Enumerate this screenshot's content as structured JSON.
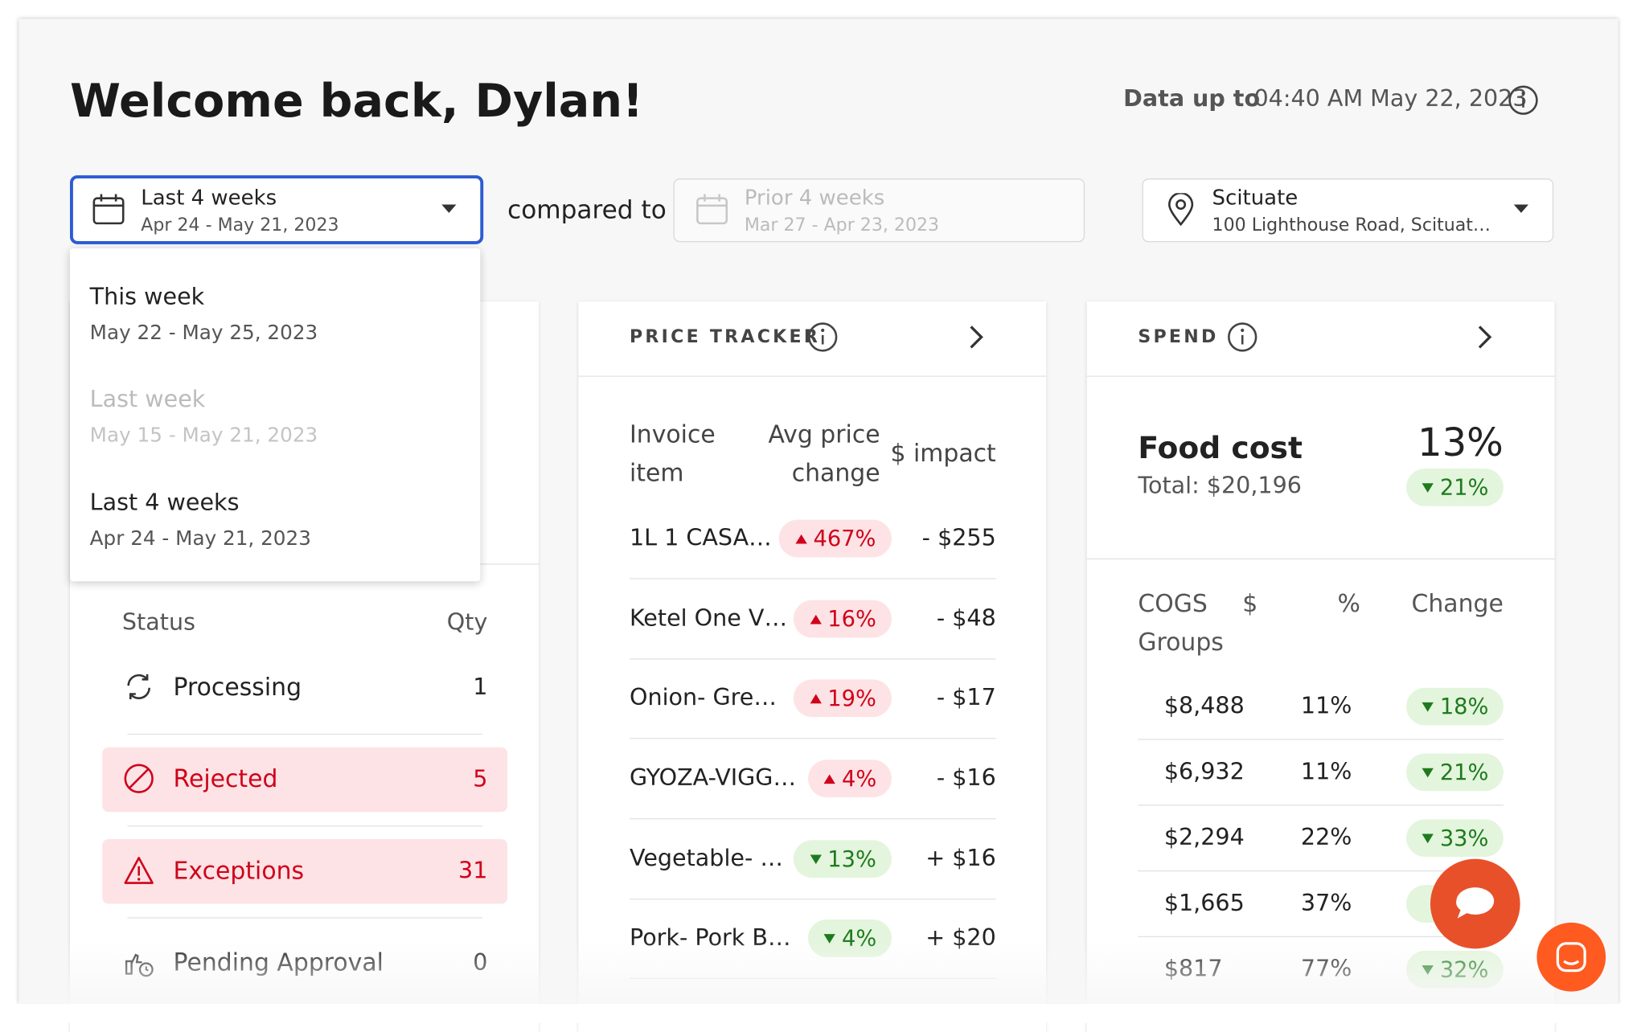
{
  "header": {
    "title": "Welcome back, Dylan!",
    "data_label": "Data up to",
    "data_time": "04:40 AM May 22, 2023"
  },
  "filters": {
    "period": {
      "label": "Last 4 weeks",
      "range": "Apr 24 - May 21, 2023"
    },
    "compared_label": "compared to",
    "compare": {
      "label": "Prior 4 weeks",
      "range": "Mar 27 - Apr 23, 2023"
    },
    "location": {
      "label": "Scituate",
      "address": "100 Lighthouse Road, Scituat…"
    }
  },
  "dropdown": {
    "options": [
      {
        "label": "This week",
        "range": "May 22 - May 25, 2023",
        "disabled": false
      },
      {
        "label": "Last week",
        "range": "May 15 - May 21, 2023",
        "disabled": true
      },
      {
        "label": "Last 4 weeks",
        "range": "Apr 24 - May 21, 2023",
        "disabled": false
      }
    ]
  },
  "status_table": {
    "headers": [
      "Status",
      "Qty"
    ],
    "rows": [
      {
        "status": "Processing",
        "qty": "1",
        "highlight": false
      },
      {
        "status": "Rejected",
        "qty": "5",
        "highlight": true
      },
      {
        "status": "Exceptions",
        "qty": "31",
        "highlight": true
      },
      {
        "status": "Pending Approval",
        "qty": "0",
        "highlight": false
      }
    ]
  },
  "price_tracker": {
    "title": "PRICE TRACKER",
    "headers": {
      "item": [
        "Invoice",
        "item"
      ],
      "change": [
        "Avg price",
        "change"
      ],
      "impact": "$ impact"
    },
    "rows": [
      {
        "item": "1L 1 CASA…",
        "change": "467%",
        "direction": "up",
        "impact": "- $255"
      },
      {
        "item": "Ketel One V…",
        "change": "16%",
        "direction": "up",
        "impact": "- $48"
      },
      {
        "item": "Onion- Gre…",
        "change": "19%",
        "direction": "up",
        "impact": "- $17"
      },
      {
        "item": "GYOZA-VIGG…",
        "change": "4%",
        "direction": "up",
        "impact": "- $16"
      },
      {
        "item": "Vegetable- …",
        "change": "13%",
        "direction": "down",
        "impact": "+ $16"
      },
      {
        "item": "Pork- Pork B…",
        "change": "4%",
        "direction": "down",
        "impact": "+ $20"
      }
    ]
  },
  "spend": {
    "title": "SPEND",
    "food_cost": {
      "label": "Food cost",
      "total": "Total: $20,196",
      "percent": "13%",
      "change": "21%",
      "direction": "down"
    },
    "headers": {
      "group": [
        "COGS",
        "Groups"
      ],
      "amount": "$",
      "percent": "%",
      "change": "Change"
    },
    "rows": [
      {
        "amount": "$8,488",
        "percent": "11%",
        "change": "18%",
        "direction": "down"
      },
      {
        "amount": "$6,932",
        "percent": "11%",
        "change": "21%",
        "direction": "down"
      },
      {
        "amount": "$2,294",
        "percent": "22%",
        "change": "33%",
        "direction": "down"
      },
      {
        "amount": "$1,665",
        "percent": "37%",
        "change": null,
        "direction": "down"
      },
      {
        "amount": "$817",
        "percent": "77%",
        "change": "32%",
        "direction": "down"
      }
    ]
  }
}
